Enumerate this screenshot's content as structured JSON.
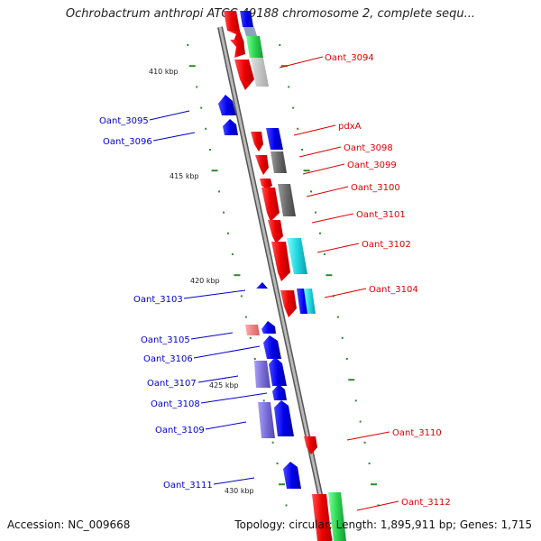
{
  "title": "Ochrobactrum anthropi ATCC 49188 chromosome 2, complete sequ...",
  "footer": {
    "accession": "Accession: NC_009668",
    "summary": "Topology: circular; Length: 1,895,911 bp; Genes: 1,715"
  },
  "colors": {
    "backbone": "#8c8c8c",
    "tick": "#2e8b2e",
    "forward_label": "#dd0000",
    "reverse_label": "#0000cc",
    "scale_label": "#222222"
  },
  "scale_labels": [
    "410 kbp",
    "415 kbp",
    "420 kbp",
    "425 kbp",
    "430 kbp"
  ],
  "gene_labels": {
    "forward": [
      "Oant_3094",
      "pdxA",
      "Oant_3098",
      "Oant_3099",
      "Oant_3100",
      "Oant_3101",
      "Oant_3102",
      "Oant_3104",
      "Oant_3110",
      "Oant_3112"
    ],
    "reverse": [
      "Oant_3095",
      "Oant_3096",
      "Oant_3103",
      "Oant_3105",
      "Oant_3106",
      "Oant_3107",
      "Oant_3108",
      "Oant_3109",
      "Oant_3111"
    ]
  },
  "feature_colors": [
    "red",
    "blue",
    "gray",
    "teal",
    "green",
    "purple",
    "pink"
  ]
}
